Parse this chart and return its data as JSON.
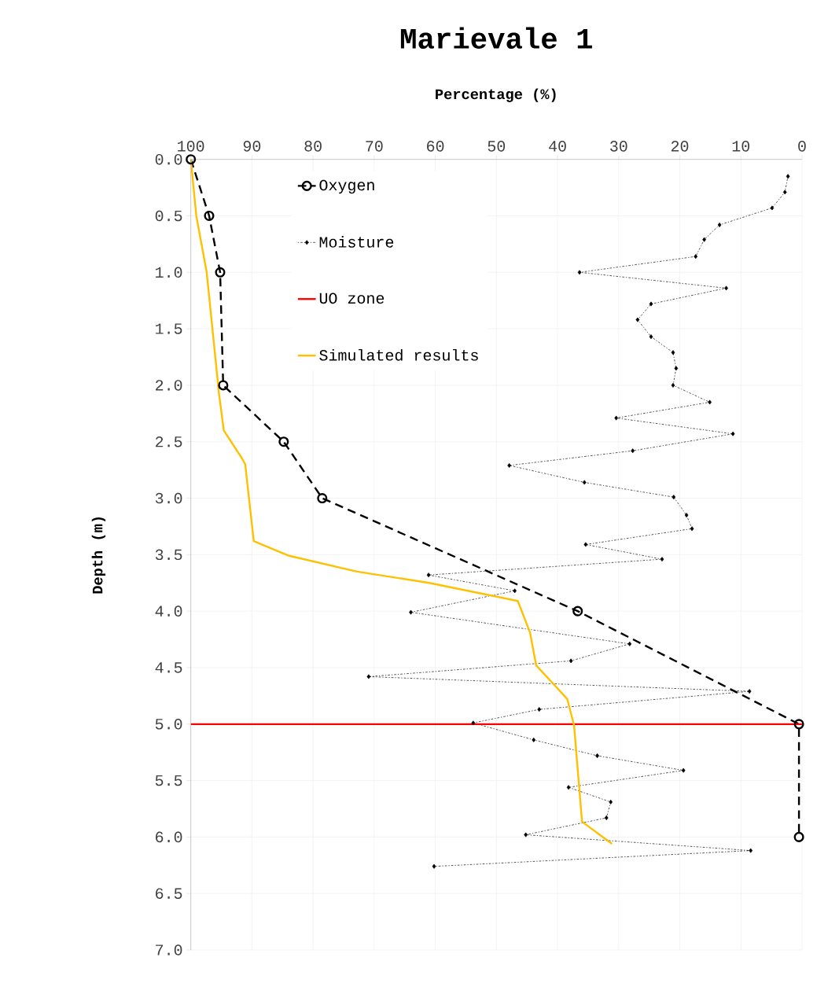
{
  "chart_data": {
    "type": "line",
    "title": "Marievale 1",
    "xlabel": "Percentage (%)",
    "ylabel": "Depth (m)",
    "xlim": [
      100,
      0
    ],
    "xticks": [
      100,
      90,
      80,
      70,
      60,
      50,
      40,
      30,
      20,
      10,
      0
    ],
    "ylim": [
      7,
      0
    ],
    "yticks": [
      {
        "value": 0,
        "label": "0.0"
      },
      {
        "value": 0.5,
        "label": "0.5"
      },
      {
        "value": 1,
        "label": "1.0"
      },
      {
        "value": 1.5,
        "label": "1.5"
      },
      {
        "value": 2,
        "label": "2.0"
      },
      {
        "value": 2.5,
        "label": "2.5"
      },
      {
        "value": 3,
        "label": "3.0"
      },
      {
        "value": 3.5,
        "label": "3.5"
      },
      {
        "value": 4,
        "label": "4.0"
      },
      {
        "value": 4.5,
        "label": "4.5"
      },
      {
        "value": 5,
        "label": "5.0"
      },
      {
        "value": 5.5,
        "label": "5.5"
      },
      {
        "value": 6,
        "label": "6.0"
      },
      {
        "value": 6.5,
        "label": "6.5"
      },
      {
        "value": 7,
        "label": "7.0"
      }
    ],
    "grid": true,
    "legend": "top left",
    "series": [
      {
        "name": "Oxygen",
        "color": "#000000",
        "marker": "circle",
        "line_style": "dashed",
        "x": [
          100,
          97,
          95.2,
          94.7,
          84.8,
          78.5,
          36.7,
          0.5,
          0.5
        ],
        "values": [
          0,
          0.5,
          1,
          2,
          2.5,
          3,
          4,
          5,
          6
        ]
      },
      {
        "name": "Moisture",
        "color": "#000000",
        "marker": "diamond",
        "line_style": "dotted",
        "x": [
          2.3,
          2.8,
          4.9,
          13.5,
          16,
          17.4,
          36.4,
          12.4,
          24.7,
          26.9,
          24.7,
          21.1,
          20.6,
          21.1,
          15.1,
          30.4,
          11.3,
          27.7,
          47.9,
          35.6,
          21,
          18.9,
          18,
          35.4,
          22.9,
          61.1,
          47,
          64,
          28.2,
          37.8,
          70.9,
          8.6,
          43,
          53.8,
          43.9,
          33.5,
          19.4,
          38.2,
          31.3,
          32,
          45.2,
          8.4,
          60.2
        ],
        "values": [
          0.15,
          0.29,
          0.43,
          0.58,
          0.71,
          0.86,
          1,
          1.14,
          1.28,
          1.42,
          1.57,
          1.71,
          1.85,
          2,
          2.15,
          2.29,
          2.43,
          2.58,
          2.71,
          2.86,
          2.99,
          3.15,
          3.27,
          3.41,
          3.54,
          3.68,
          3.82,
          4.01,
          4.29,
          4.44,
          4.58,
          4.71,
          4.87,
          4.99,
          5.14,
          5.28,
          5.41,
          5.56,
          5.69,
          5.83,
          5.98,
          6.12,
          6.26
        ]
      },
      {
        "name": "Simulated results",
        "color": "#ffc000",
        "marker": "none",
        "line_style": "solid",
        "x": [
          100,
          99.1,
          97.4,
          95.6,
          95.4,
          94.6,
          91.6,
          91.1,
          89.7,
          83.9,
          72.8,
          61,
          46.5,
          44.5,
          43.5,
          39.9,
          38.4,
          37.3,
          36,
          35.6,
          31.1
        ],
        "values": [
          0,
          0.5,
          1,
          1.96,
          2.07,
          2.4,
          2.65,
          2.7,
          3.38,
          3.51,
          3.65,
          3.75,
          3.91,
          4.19,
          4.48,
          4.69,
          4.78,
          5.01,
          5.86,
          5.88,
          6.06
        ]
      }
    ],
    "ref_lines": [
      {
        "axis": "y",
        "value": 5,
        "label": "UO zone",
        "color": "#ff0000"
      }
    ]
  }
}
